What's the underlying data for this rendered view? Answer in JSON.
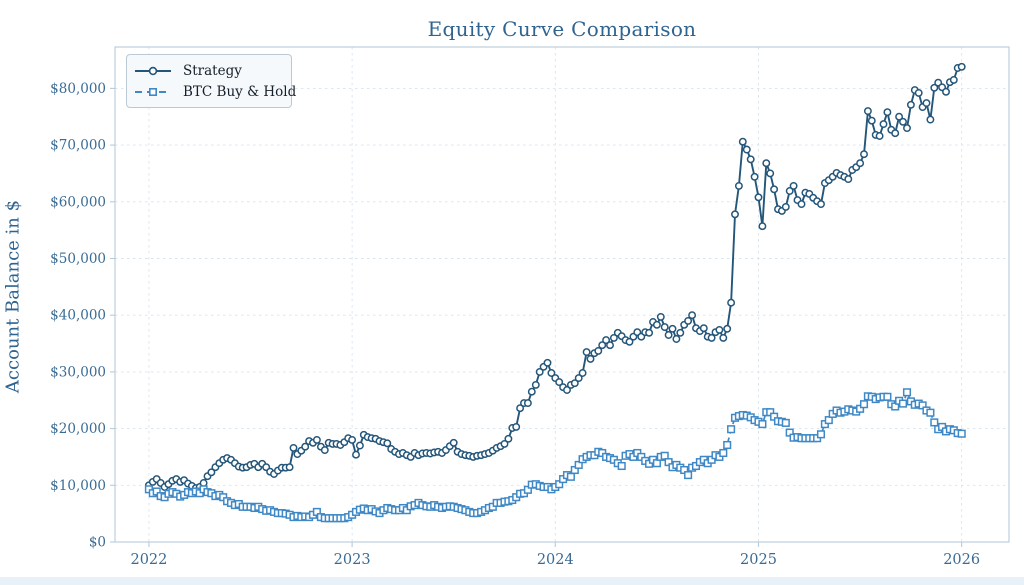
{
  "title": "Equity Curve Comparison",
  "y_axis_label": "Account Balance in $",
  "legend": {
    "items": [
      {
        "label": "Strategy"
      },
      {
        "label": "BTC Buy & Hold"
      }
    ]
  },
  "colors": {
    "strategy_line": "#24567a",
    "btc_line": "#3f88c5",
    "title_text": "#2f6491",
    "tick_text": "#3a6b94",
    "grid": "#d4e4f1",
    "spine": "#b9cbd8",
    "legend_bg": "#f5f9fc",
    "figure_bg": "#ffffff",
    "page_band": "#e8f1f8"
  },
  "chart_data": {
    "type": "line",
    "title": "Equity Curve Comparison",
    "xlabel": "",
    "ylabel": "Account Balance in $",
    "x_tick_labels": [
      "2022",
      "2023",
      "2024",
      "2025",
      "2026"
    ],
    "x_tick_years": [
      2022,
      2023,
      2024,
      2025,
      2026
    ],
    "y_tick_labels": [
      "$0",
      "$10,000",
      "$20,000",
      "$30,000",
      "$40,000",
      "$50,000",
      "$60,000",
      "$70,000",
      "$80,000"
    ],
    "y_tick_values": [
      0,
      10000,
      20000,
      30000,
      40000,
      50000,
      60000,
      70000,
      80000
    ],
    "ylim": [
      0,
      87300
    ],
    "xlim_years": [
      2021.833,
      2026.233
    ],
    "grid": "both, light dashed",
    "legend_position": "upper left",
    "x_start_year": 2022.0,
    "x_step_years": 0.0192307,
    "series": [
      {
        "name": "Strategy",
        "marker": "circle",
        "line_style": "solid",
        "values_usd": [
          10000,
          10600,
          11100,
          10400,
          9700,
          10200,
          10800,
          11100,
          10600,
          10900,
          10300,
          9900,
          9500,
          9700,
          10400,
          11600,
          12300,
          13200,
          13900,
          14500,
          14800,
          14500,
          13900,
          13300,
          13100,
          13200,
          13600,
          13800,
          13200,
          13800,
          13200,
          12400,
          12000,
          12600,
          13100,
          13100,
          13200,
          16600,
          15500,
          16100,
          16800,
          17800,
          17500,
          18000,
          16800,
          16200,
          17500,
          17300,
          17300,
          17100,
          17600,
          18300,
          18000,
          15400,
          17000,
          18900,
          18500,
          18300,
          18200,
          17800,
          17600,
          17400,
          16400,
          15900,
          15500,
          15700,
          15300,
          15000,
          15700,
          15300,
          15600,
          15700,
          15600,
          15800,
          15900,
          15700,
          16200,
          16900,
          17500,
          15900,
          15500,
          15300,
          15200,
          15000,
          15200,
          15300,
          15500,
          15700,
          16100,
          16600,
          16900,
          17300,
          18200,
          20100,
          20300,
          23600,
          24500,
          24500,
          26500,
          27700,
          30000,
          30900,
          31600,
          29800,
          28900,
          28200,
          27300,
          26800,
          27700,
          28000,
          28900,
          29800,
          33500,
          32300,
          33300,
          33700,
          34700,
          35600,
          34700,
          36000,
          36900,
          36300,
          35600,
          35300,
          36200,
          37000,
          36200,
          37000,
          36900,
          38800,
          38300,
          39700,
          37900,
          36500,
          37600,
          35800,
          36900,
          38300,
          39000,
          40000,
          37700,
          37200,
          37700,
          36200,
          36000,
          37000,
          37400,
          36000,
          37600,
          42200,
          57800,
          62800,
          70600,
          69200,
          67500,
          64400,
          60800,
          55700,
          66800,
          65000,
          62200,
          58700,
          58400,
          59100,
          61900,
          62800,
          60300,
          59600,
          61600,
          61400,
          60700,
          60100,
          59600,
          63300,
          63800,
          64400,
          65100,
          64700,
          64400,
          64000,
          65600,
          66100,
          66800,
          68400,
          76000,
          74300,
          71800,
          71600,
          73700,
          75800,
          72700,
          72100,
          75000,
          74100,
          73000,
          77100,
          79700,
          79200,
          76700,
          77400,
          74500,
          80100,
          81000,
          80200,
          79400,
          81100,
          81500,
          83600,
          83800
        ]
      },
      {
        "name": "BTC Buy & Hold",
        "marker": "square",
        "line_style": "dashed",
        "values_usd": [
          9300,
          8600,
          8900,
          8100,
          7900,
          8500,
          8800,
          8500,
          8000,
          8300,
          8800,
          8600,
          8900,
          8600,
          9300,
          8800,
          8600,
          8100,
          8300,
          7900,
          7200,
          6900,
          6500,
          6700,
          6200,
          6200,
          6200,
          6000,
          6200,
          5800,
          5500,
          5600,
          5300,
          5100,
          5100,
          5000,
          4800,
          4400,
          4600,
          4400,
          4500,
          4400,
          4800,
          5300,
          4400,
          4200,
          4200,
          4200,
          4200,
          4200,
          4200,
          4400,
          4800,
          5300,
          5700,
          5900,
          5600,
          5800,
          5400,
          5100,
          5600,
          6000,
          5800,
          5600,
          5600,
          6000,
          5600,
          6300,
          6500,
          6900,
          6500,
          6300,
          6200,
          6500,
          6200,
          6000,
          6200,
          6300,
          6200,
          6000,
          5800,
          5600,
          5300,
          5100,
          5100,
          5300,
          5600,
          6000,
          6200,
          6900,
          6900,
          7100,
          7200,
          7400,
          7900,
          8500,
          8600,
          9200,
          10100,
          10200,
          9900,
          9700,
          9700,
          9300,
          9700,
          10200,
          11100,
          11800,
          11500,
          12700,
          13600,
          14600,
          15000,
          15300,
          15300,
          15900,
          15700,
          15000,
          14800,
          14500,
          13900,
          13400,
          15200,
          15500,
          15000,
          15700,
          15000,
          14300,
          13800,
          14500,
          13900,
          15000,
          15200,
          14100,
          13200,
          13600,
          13100,
          12700,
          11800,
          13100,
          13400,
          14100,
          14500,
          13900,
          14500,
          15300,
          15000,
          15700,
          17100,
          19900,
          21900,
          22200,
          22400,
          22300,
          22000,
          21500,
          21200,
          20800,
          22900,
          22900,
          22100,
          21300,
          21200,
          21000,
          19300,
          18400,
          18500,
          18300,
          18300,
          18300,
          18300,
          18300,
          19000,
          20800,
          21500,
          22600,
          23200,
          22800,
          23000,
          23400,
          23200,
          23000,
          23500,
          24300,
          25700,
          25600,
          25200,
          25500,
          25600,
          25600,
          24300,
          23900,
          24900,
          24400,
          26400,
          24800,
          24200,
          24400,
          24100,
          23200,
          22800,
          21100,
          19900,
          20300,
          19500,
          19900,
          19700,
          19200,
          19100
        ]
      }
    ]
  }
}
